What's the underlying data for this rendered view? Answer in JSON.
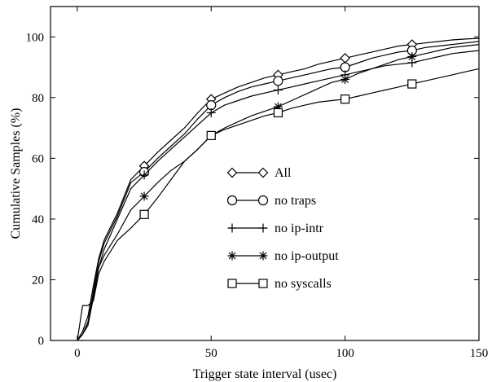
{
  "chart_data": {
    "type": "line",
    "title": "",
    "xlabel": "Trigger state interval (usec)",
    "ylabel": "Cumulative Samples (%)",
    "xlim": [
      -10,
      150
    ],
    "ylim": [
      0,
      110
    ],
    "xticks": [
      0,
      50,
      100,
      150
    ],
    "yticks": [
      0,
      20,
      40,
      60,
      80,
      100
    ],
    "grid": false,
    "legend_position": "center",
    "series": [
      {
        "name": "All",
        "marker": "diamond",
        "x": [
          0,
          2,
          4,
          6,
          8,
          10,
          15,
          20,
          25,
          30,
          35,
          40,
          45,
          50,
          55,
          60,
          65,
          70,
          75,
          80,
          85,
          90,
          95,
          100,
          105,
          110,
          115,
          120,
          125,
          130,
          135,
          140,
          145,
          150
        ],
        "y": [
          0,
          3,
          8,
          18,
          27,
          33,
          42,
          53,
          57.5,
          62,
          66,
          70,
          75,
          79.5,
          81.5,
          83.5,
          85,
          86.5,
          87.5,
          88.5,
          89.5,
          91,
          92,
          93,
          94,
          95,
          96,
          97,
          97.5,
          98,
          98.5,
          99,
          99.3,
          99.5
        ],
        "markers_x": [
          25,
          50,
          75,
          100,
          125
        ]
      },
      {
        "name": "no traps",
        "marker": "circle",
        "x": [
          0,
          2,
          4,
          6,
          8,
          10,
          15,
          20,
          25,
          30,
          35,
          40,
          45,
          50,
          55,
          60,
          65,
          70,
          75,
          80,
          85,
          90,
          95,
          100,
          105,
          110,
          115,
          120,
          125,
          130,
          135,
          140,
          145,
          150
        ],
        "y": [
          0,
          2,
          6,
          16,
          26,
          32,
          41,
          52,
          55.5,
          60,
          64,
          68,
          73,
          77.5,
          80,
          82,
          83.5,
          84.5,
          85.5,
          86.5,
          87.5,
          88.5,
          89.5,
          90,
          91.5,
          93,
          94,
          95,
          95.5,
          96.5,
          97,
          97.5,
          98,
          98.5
        ],
        "markers_x": [
          25,
          50,
          75,
          100,
          125
        ]
      },
      {
        "name": "no ip-intr",
        "marker": "plus",
        "x": [
          0,
          2,
          4,
          6,
          8,
          10,
          15,
          20,
          25,
          30,
          35,
          40,
          45,
          50,
          55,
          60,
          65,
          70,
          75,
          80,
          85,
          90,
          95,
          100,
          105,
          110,
          115,
          120,
          125,
          130,
          135,
          140,
          145,
          150
        ],
        "y": [
          0,
          2,
          5,
          14,
          24,
          30,
          40,
          50,
          54.5,
          59,
          63,
          67,
          71,
          75,
          77.5,
          79,
          80.5,
          81.5,
          82.5,
          83.5,
          84.5,
          85.5,
          86.5,
          87.5,
          88.5,
          89.5,
          90.5,
          91,
          91.5,
          92.5,
          93.5,
          94.5,
          95,
          95.5
        ],
        "markers_x": [
          25,
          50,
          75,
          100,
          125
        ]
      },
      {
        "name": "no ip-output",
        "marker": "asterisk",
        "x": [
          0,
          2,
          4,
          6,
          8,
          10,
          15,
          20,
          25,
          30,
          35,
          40,
          45,
          50,
          55,
          60,
          65,
          70,
          75,
          80,
          85,
          90,
          95,
          100,
          105,
          110,
          115,
          120,
          125,
          130,
          135,
          140,
          145,
          150
        ],
        "y": [
          0,
          2,
          6,
          15,
          24,
          28,
          35,
          43,
          47.5,
          52,
          56,
          59,
          63,
          67.5,
          70,
          72,
          74,
          75.5,
          77,
          79,
          81,
          83,
          85,
          86,
          88,
          89.5,
          91,
          92.5,
          93.5,
          94.5,
          95.5,
          96.5,
          97,
          97.5
        ],
        "markers_x": [
          25,
          50,
          75,
          100,
          125
        ]
      },
      {
        "name": "no syscalls",
        "marker": "square",
        "x": [
          0,
          2,
          4,
          6,
          8,
          10,
          15,
          20,
          25,
          30,
          35,
          40,
          45,
          50,
          55,
          60,
          65,
          70,
          75,
          80,
          85,
          90,
          95,
          100,
          105,
          110,
          115,
          120,
          125,
          130,
          135,
          140,
          145,
          150
        ],
        "y": [
          0,
          11.5,
          11.5,
          13,
          22,
          26,
          33,
          37,
          41.5,
          47,
          53,
          59,
          63,
          67.5,
          69.5,
          71,
          72.5,
          74,
          75,
          76.5,
          77.5,
          78.5,
          79,
          79.5,
          80.5,
          81.5,
          82.5,
          83.5,
          84.5,
          85.5,
          86.5,
          87.5,
          88.5,
          89.5
        ],
        "markers_x": [
          25,
          50,
          75,
          100,
          125
        ]
      }
    ]
  }
}
